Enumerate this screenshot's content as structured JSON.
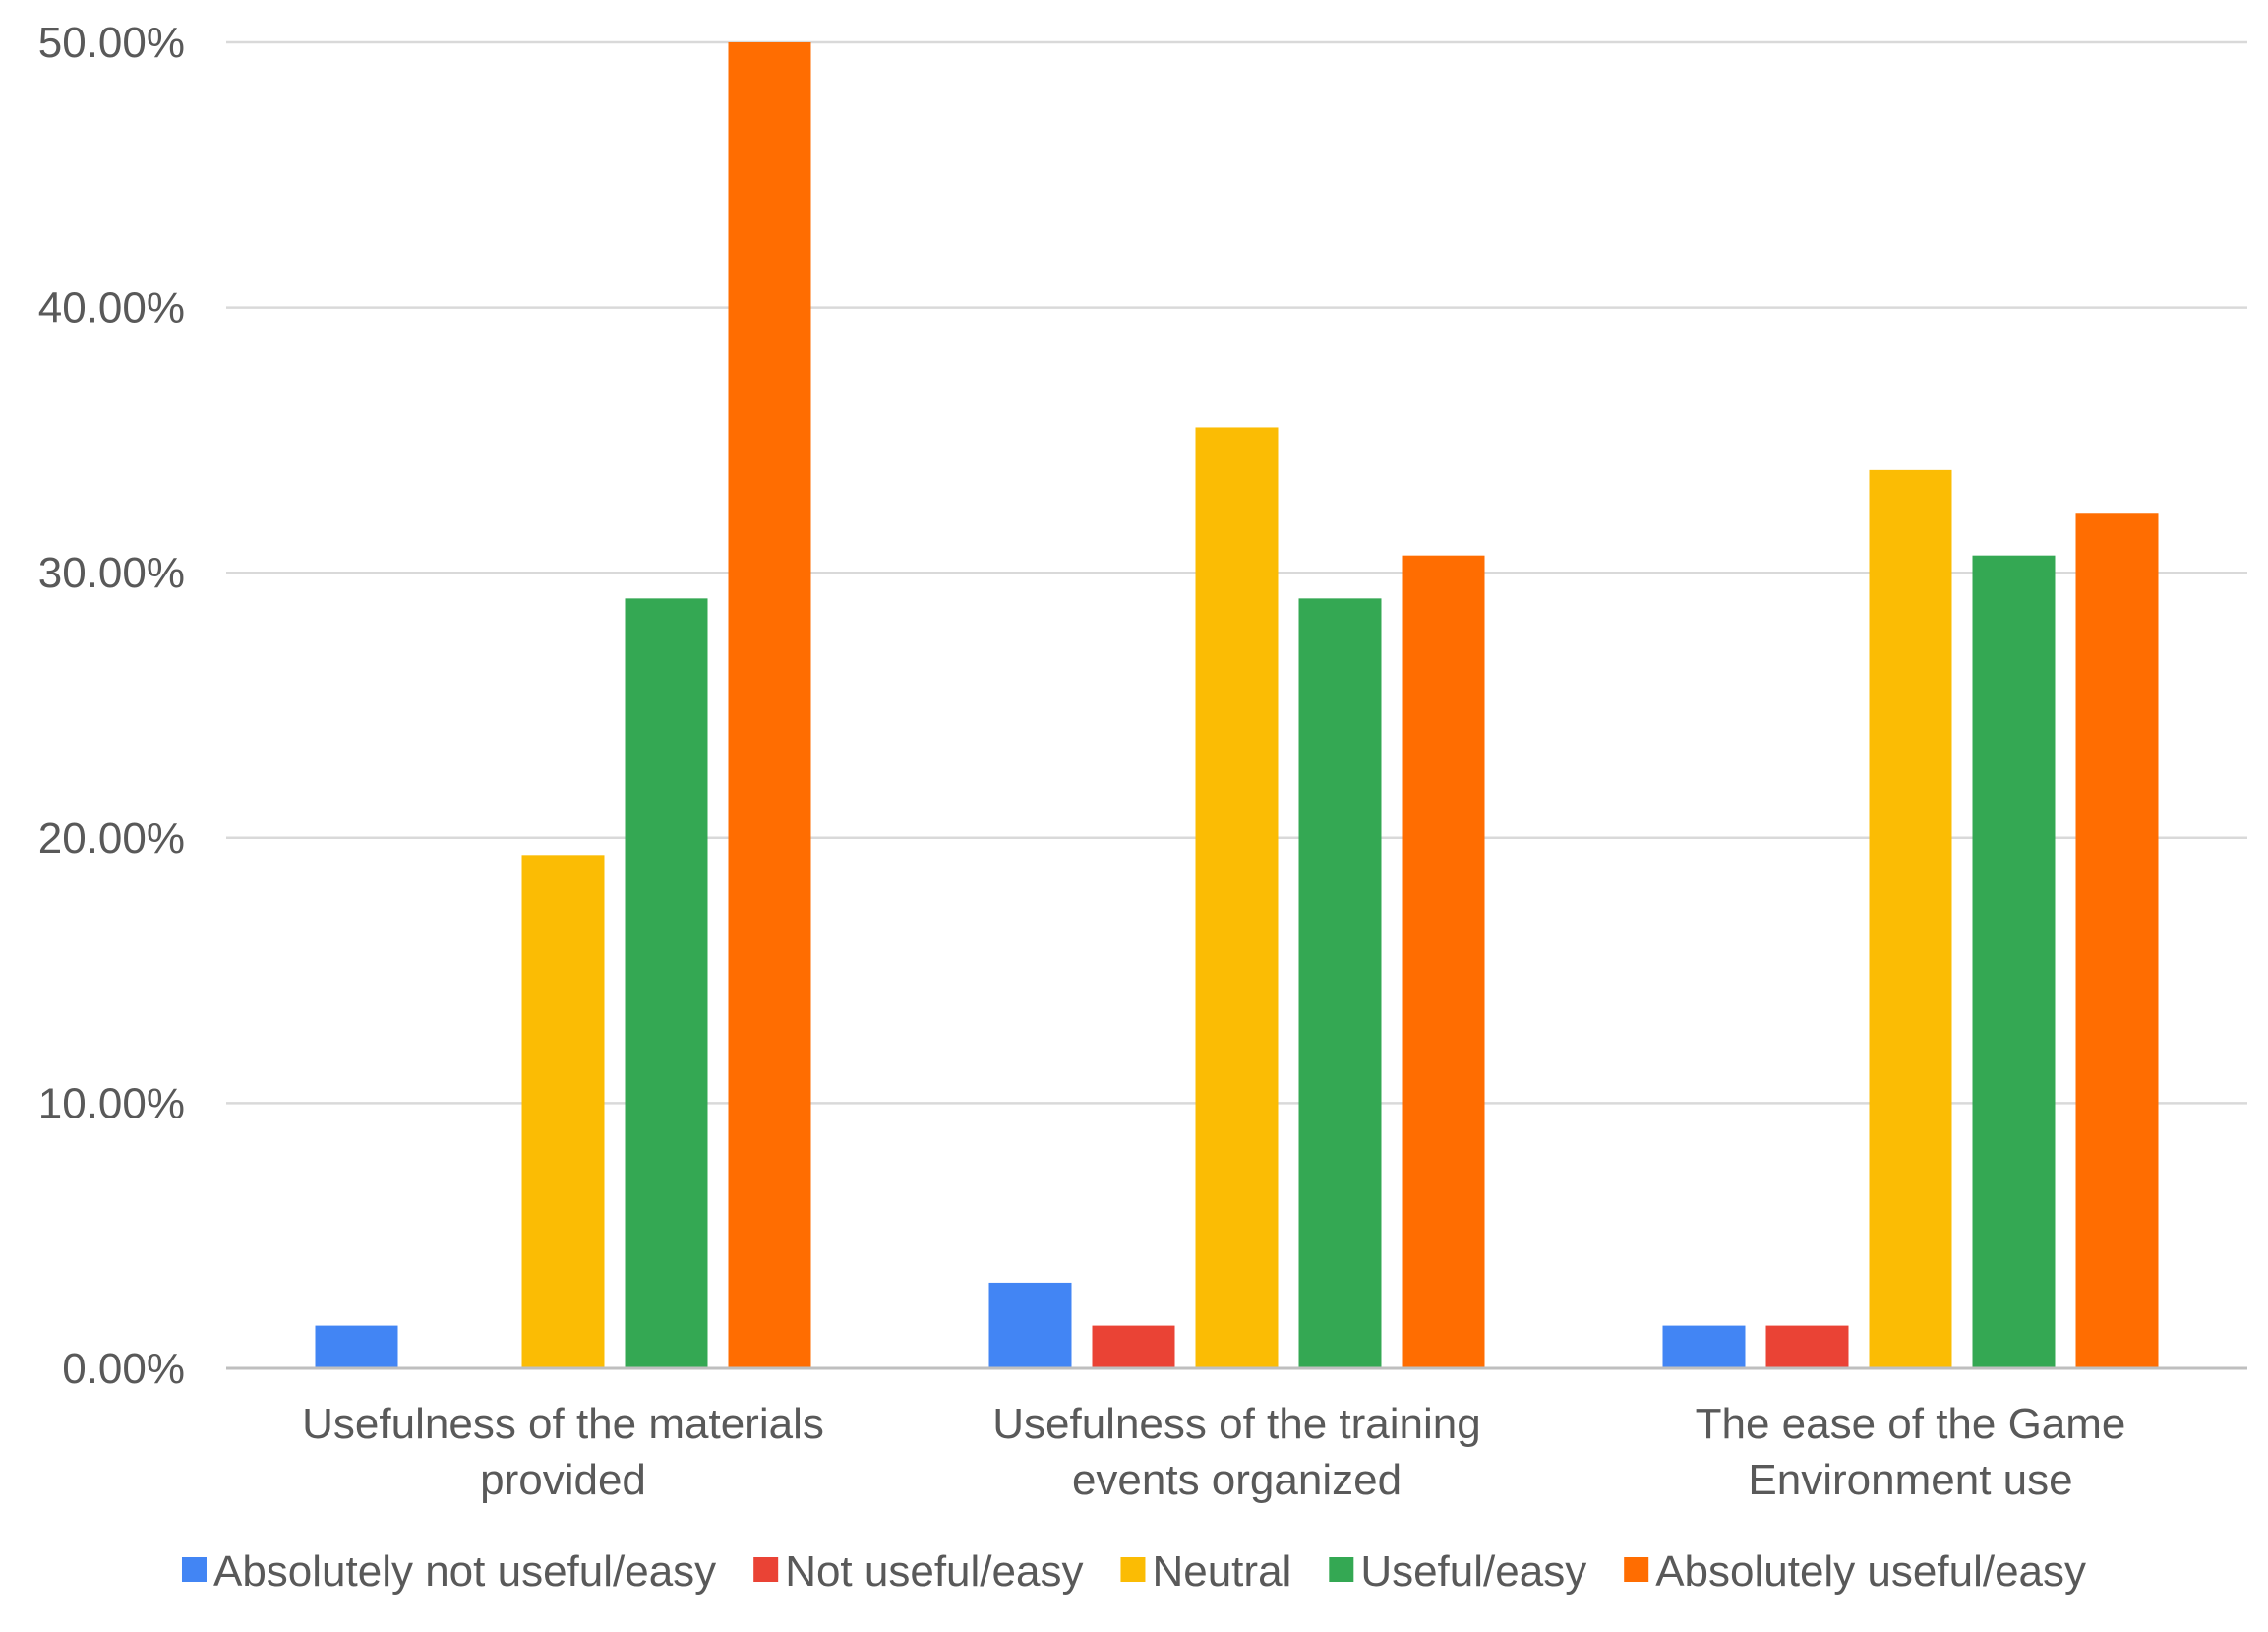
{
  "chart_data": {
    "type": "bar",
    "title": "",
    "xlabel": "",
    "ylabel": "",
    "ylim": [
      0,
      50
    ],
    "y_ticks": [
      "0.00%",
      "10.00%",
      "20.00%",
      "30.00%",
      "40.00%",
      "50.00%"
    ],
    "y_tick_values": [
      0,
      10,
      20,
      30,
      40,
      50
    ],
    "grid": true,
    "legend_position": "bottom",
    "categories": [
      [
        "Usefulness of the materials",
        "provided"
      ],
      [
        "Usefulness of the training",
        "events organized"
      ],
      [
        "The ease of the Game",
        "Environment use"
      ]
    ],
    "series": [
      {
        "name": "Absolutely not useful/easy",
        "color": "#4285f4",
        "values": [
          1.61,
          3.23,
          1.61
        ]
      },
      {
        "name": "Not useful/easy",
        "color": "#ea4335",
        "values": [
          0,
          1.61,
          1.61
        ]
      },
      {
        "name": "Neutral",
        "color": "#fbbc04",
        "values": [
          19.35,
          35.48,
          33.87
        ]
      },
      {
        "name": "Useful/easy",
        "color": "#34a853",
        "values": [
          29.03,
          29.03,
          30.65
        ]
      },
      {
        "name": "Absolutely useful/easy",
        "color": "#ff6d01",
        "values": [
          50.0,
          30.65,
          32.26
        ]
      }
    ]
  }
}
